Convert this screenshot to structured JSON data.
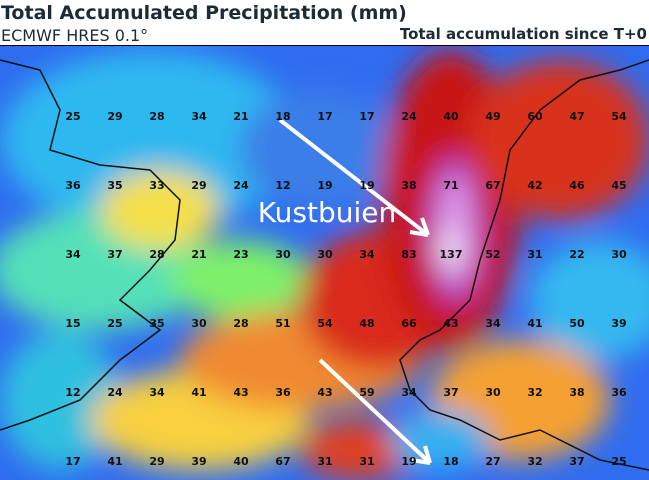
{
  "header": {
    "title": "Total Accumulated Precipitation (mm)",
    "subtitle": "ECMWF HRES 0.1°",
    "accumulation": "Total accumulation since T+0"
  },
  "annotation": "Kustbuien",
  "map": {
    "values": [
      [
        25,
        29,
        28,
        34,
        21,
        18,
        17,
        17,
        24,
        40,
        49,
        60,
        47,
        54
      ],
      [
        36,
        35,
        33,
        29,
        24,
        12,
        19,
        19,
        38,
        71,
        67,
        42,
        46,
        45
      ],
      [
        34,
        37,
        28,
        21,
        23,
        30,
        30,
        34,
        83,
        137,
        52,
        31,
        22,
        30
      ],
      [
        15,
        25,
        35,
        30,
        28,
        51,
        54,
        48,
        66,
        43,
        34,
        41,
        50,
        39
      ],
      [
        12,
        24,
        34,
        41,
        43,
        36,
        43,
        59,
        34,
        37,
        30,
        32,
        38,
        36
      ],
      [
        17,
        41,
        29,
        39,
        40,
        67,
        31,
        31,
        19,
        18,
        27,
        32,
        37,
        25
      ]
    ]
  }
}
